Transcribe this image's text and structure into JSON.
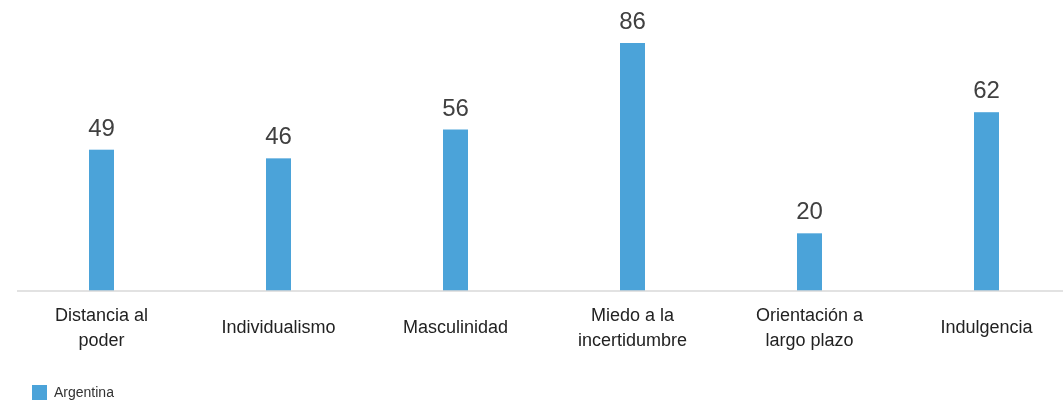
{
  "chart_data": {
    "type": "bar",
    "categories": [
      "Distancia al poder",
      "Individualismo",
      "Masculinidad",
      "Miedo a la incertidumbre",
      "Orientación a largo plazo",
      "Indulgencia"
    ],
    "series": [
      {
        "name": "Argentina",
        "color": "#4ba3d9",
        "values": [
          49,
          46,
          56,
          86,
          20,
          62
        ]
      }
    ],
    "tick_labels": "x",
    "data_labels": true,
    "legend": "bottom left"
  }
}
